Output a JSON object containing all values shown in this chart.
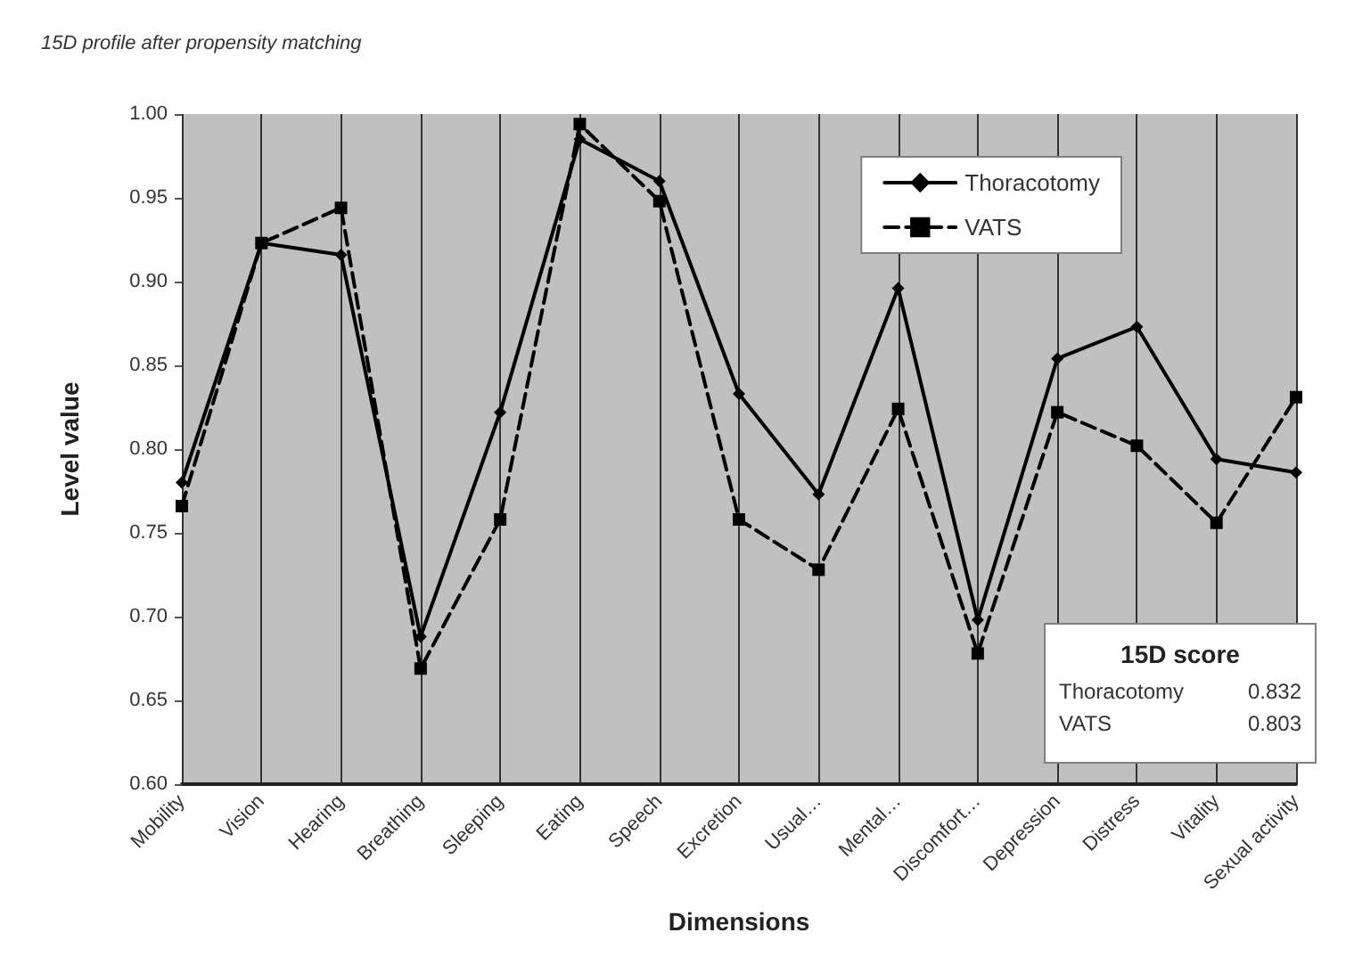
{
  "chart_data": {
    "type": "line",
    "title": "15D profile after propensity matching",
    "xlabel": "Dimensions",
    "ylabel": "Level value",
    "categories": [
      "Mobility",
      "Vision",
      "Hearing",
      "Breathing",
      "Sleeping",
      "Eating",
      "Speech",
      "Excretion",
      "Usual…",
      "Mental…",
      "Discomfort…",
      "Depression",
      "Distress",
      "Vitality",
      "Sexual activity"
    ],
    "series": [
      {
        "name": "Thoracotomy",
        "color": "#000000",
        "marker": "diamond",
        "line_style": "solid",
        "values": [
          0.78,
          0.923,
          0.916,
          0.688,
          0.822,
          0.985,
          0.96,
          0.833,
          0.773,
          0.896,
          0.698,
          0.854,
          0.873,
          0.794,
          0.786
        ]
      },
      {
        "name": "VATS",
        "color": "#000000",
        "marker": "square",
        "line_style": "dashed",
        "values": [
          0.766,
          0.923,
          0.944,
          0.669,
          0.758,
          0.994,
          0.948,
          0.758,
          0.728,
          0.824,
          0.678,
          0.822,
          0.802,
          0.756,
          0.831
        ]
      }
    ],
    "ylim": [
      0.6,
      1.0
    ],
    "yticks": [
      {
        "value": 0.6,
        "label": "0.60"
      },
      {
        "value": 0.65,
        "label": "0.65"
      },
      {
        "value": 0.7,
        "label": "0.70"
      },
      {
        "value": 0.75,
        "label": "0.75"
      },
      {
        "value": 0.8,
        "label": "0.80"
      },
      {
        "value": 0.85,
        "label": "0.85"
      },
      {
        "value": 0.9,
        "label": "0.90"
      },
      {
        "value": 0.95,
        "label": "0.95"
      },
      {
        "value": 1.0,
        "label": "1.00"
      }
    ],
    "grid": "x",
    "legend": "top right",
    "annotations": [
      "15D score",
      "Thoracotomy",
      "0.832",
      "VATS",
      "0.803"
    ]
  }
}
